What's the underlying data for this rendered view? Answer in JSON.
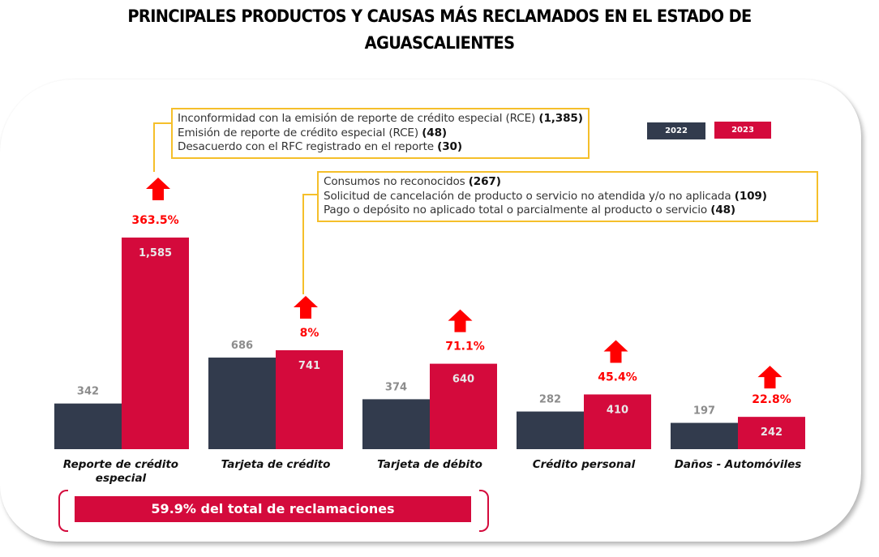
{
  "title": {
    "line1": "PRINCIPALES PRODUCTOS Y CAUSAS MÁS RECLAMADOS EN EL ESTADO DE",
    "line2": "AGUASCALIENTES"
  },
  "colors": {
    "series_2022": "#323b4d",
    "series_2023": "#d40a3c",
    "increase": "#ff0000",
    "callout_border": "#f5bf2a",
    "label_2022": "#8c8c8c"
  },
  "legend": [
    {
      "label": "2022",
      "color": "#323b4d"
    },
    {
      "label": "2023",
      "color": "#d40a3c"
    }
  ],
  "callouts": [
    {
      "product": "Reporte de crédito especial",
      "items": [
        {
          "text": "Inconformidad con la emisión de reporte de crédito especial (RCE)",
          "value": "(1,385)"
        },
        {
          "text": "Emisión de reporte de crédito especial (RCE)",
          "value": "(48)"
        },
        {
          "text": "Desacuerdo con el RFC registrado en el reporte",
          "value": "(30)"
        }
      ]
    },
    {
      "product": "Tarjeta de crédito",
      "items": [
        {
          "text": "Consumos no reconocidos",
          "value": "(267)"
        },
        {
          "text": "Solicitud de cancelación de producto o servicio no atendida y/o no aplicada",
          "value": "(109)"
        },
        {
          "text": "Pago o depósito no aplicado total o parcialmente al producto o servicio",
          "value": "(48)"
        }
      ]
    }
  ],
  "summary": {
    "text": "59.9% del total de reclamaciones"
  },
  "chart_data": {
    "type": "bar",
    "title": "PRINCIPALES PRODUCTOS Y CAUSAS MÁS RECLAMADOS EN EL ESTADO DE AGUASCALIENTES",
    "xlabel": "",
    "ylabel": "",
    "grid": false,
    "legend_position": "top-right",
    "categories": [
      "Reporte de crédito especial",
      "Tarjeta de crédito",
      "Tarjeta de débito",
      "Crédito personal",
      "Daños - Automóviles"
    ],
    "series": [
      {
        "name": "2022",
        "values": [
          342,
          686,
          374,
          282,
          197
        ],
        "labels": [
          "342",
          "686",
          "374",
          "282",
          "197"
        ]
      },
      {
        "name": "2023",
        "values": [
          1585,
          741,
          640,
          410,
          242
        ],
        "labels": [
          "1,585",
          "741",
          "640",
          "410",
          "242"
        ]
      }
    ],
    "changes": [
      "363.5%",
      "8%",
      "71.1%",
      "45.4%",
      "22.8%"
    ],
    "ylim": [
      0,
      1585
    ]
  }
}
